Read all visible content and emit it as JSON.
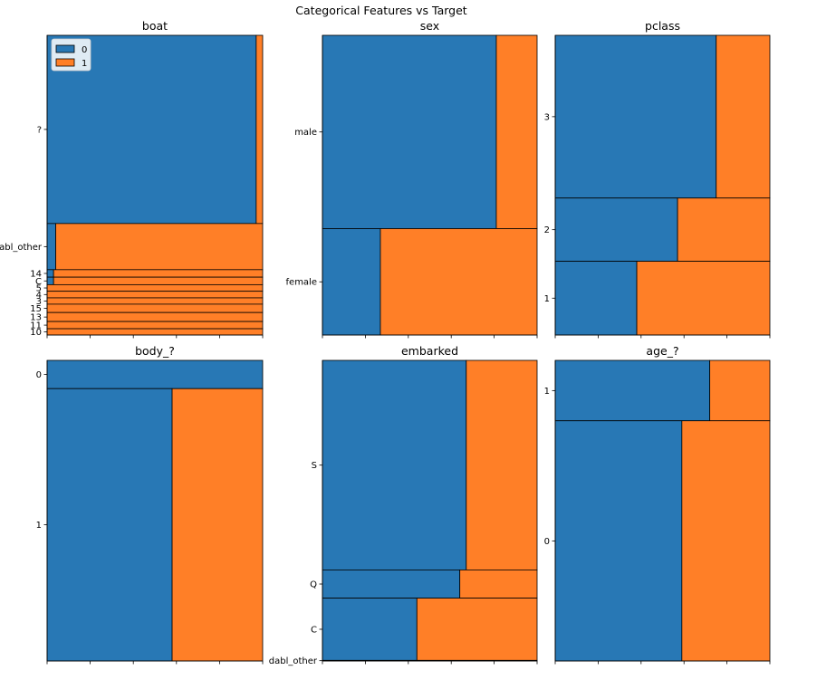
{
  "figure": {
    "title": "Categorical Features vs Target"
  },
  "colors": {
    "class_0": "#2878b5",
    "class_1": "#ff7f27",
    "edge": "#000000"
  },
  "legend": {
    "entries": [
      "0",
      "1"
    ]
  },
  "chart_data": [
    {
      "type": "mosaic",
      "title": "boat",
      "categories": [
        "?",
        "dabl_other",
        "14",
        "C",
        "5",
        "4",
        "3",
        "15",
        "13",
        "11",
        "10"
      ],
      "category_share": [
        0.628,
        0.154,
        0.025,
        0.025,
        0.022,
        0.022,
        0.021,
        0.028,
        0.03,
        0.024,
        0.021
      ],
      "series": [
        {
          "name": "0",
          "share_within_category": [
            0.97,
            0.04,
            0.03,
            0.03,
            0,
            0,
            0,
            0,
            0,
            0,
            0
          ]
        },
        {
          "name": "1",
          "share_within_category": [
            0.03,
            0.96,
            0.97,
            0.97,
            1,
            1,
            1,
            1,
            1,
            1,
            1
          ]
        }
      ],
      "legend": "top-left"
    },
    {
      "type": "mosaic",
      "title": "sex",
      "categories": [
        "male",
        "female"
      ],
      "category_share": [
        0.645,
        0.355
      ],
      "series": [
        {
          "name": "0",
          "share_within_category": [
            0.81,
            0.27
          ]
        },
        {
          "name": "1",
          "share_within_category": [
            0.19,
            0.73
          ]
        }
      ]
    },
    {
      "type": "mosaic",
      "title": "pclass",
      "categories": [
        "3",
        "2",
        "1"
      ],
      "category_share": [
        0.543,
        0.211,
        0.246
      ],
      "series": [
        {
          "name": "0",
          "share_within_category": [
            0.75,
            0.57,
            0.38
          ]
        },
        {
          "name": "1",
          "share_within_category": [
            0.25,
            0.43,
            0.62
          ]
        }
      ]
    },
    {
      "type": "mosaic",
      "title": "body_?",
      "categories": [
        "0",
        "1"
      ],
      "category_share": [
        0.094,
        0.906
      ],
      "series": [
        {
          "name": "0",
          "share_within_category": [
            1.0,
            0.58
          ]
        },
        {
          "name": "1",
          "share_within_category": [
            0.0,
            0.42
          ]
        }
      ]
    },
    {
      "type": "mosaic",
      "title": "embarked",
      "categories": [
        "S",
        "Q",
        "C",
        "dabl_other"
      ],
      "category_share": [
        0.697,
        0.094,
        0.207,
        0.002
      ],
      "series": [
        {
          "name": "0",
          "share_within_category": [
            0.67,
            0.64,
            0.44,
            0.0
          ]
        },
        {
          "name": "1",
          "share_within_category": [
            0.33,
            0.36,
            0.56,
            1.0
          ]
        }
      ]
    },
    {
      "type": "mosaic",
      "title": "age_?",
      "categories": [
        "1",
        "0"
      ],
      "category_share": [
        0.201,
        0.799
      ],
      "series": [
        {
          "name": "0",
          "share_within_category": [
            0.72,
            0.59
          ]
        },
        {
          "name": "1",
          "share_within_category": [
            0.28,
            0.41
          ]
        }
      ]
    }
  ]
}
